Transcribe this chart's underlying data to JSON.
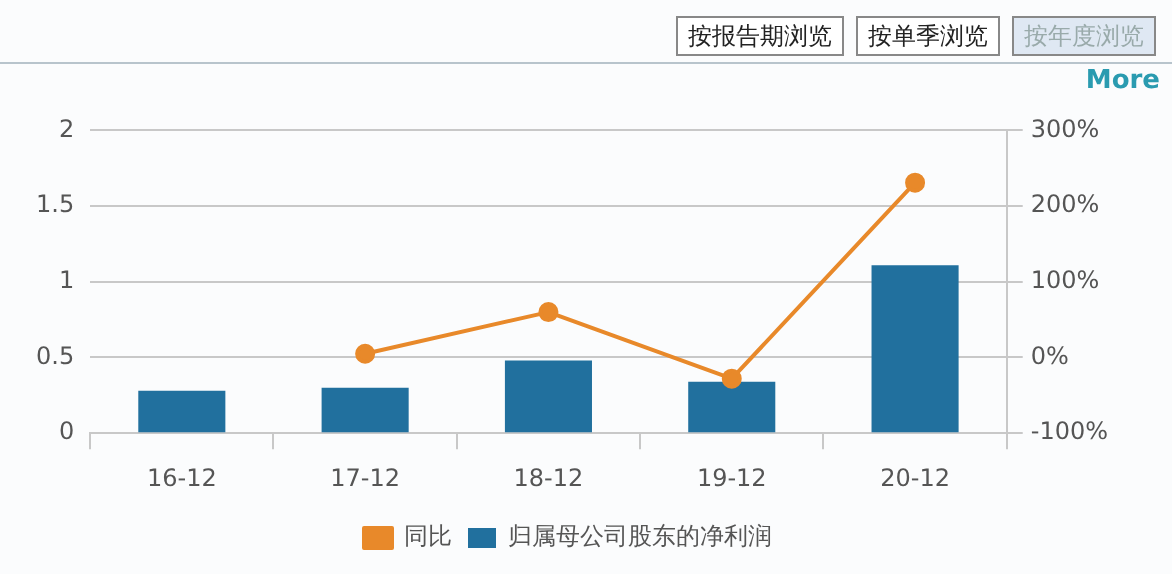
{
  "chart_data": {
    "type": "bar",
    "categories": [
      "16-12",
      "17-12",
      "18-12",
      "19-12",
      "20-12"
    ],
    "series": [
      {
        "name": "归属母公司股东的净利润",
        "color": "#21709e",
        "values": [
          0.28,
          0.3,
          0.48,
          0.34,
          1.11
        ]
      },
      {
        "name": "同比",
        "type": "line",
        "axis": "y2",
        "color": "#e8892a",
        "values": [
          null,
          5,
          60,
          -28,
          231
        ]
      }
    ],
    "ylim": [
      0,
      2
    ],
    "yticks": [
      0,
      0.5,
      1,
      1.5,
      2
    ],
    "y2lim": [
      -100,
      300
    ],
    "y2ticks": [
      {
        "value": -100,
        "label": "-100%"
      },
      {
        "value": 0,
        "label": "0%"
      },
      {
        "value": 100,
        "label": "100%"
      },
      {
        "value": 200,
        "label": "200%"
      },
      {
        "value": 300,
        "label": "300%"
      }
    ],
    "grid": "y",
    "legend": "bottom",
    "marker": "circle",
    "annotations": [
      "按报告期浏览",
      "按单季浏览",
      "按年度浏览",
      "More"
    ]
  }
}
